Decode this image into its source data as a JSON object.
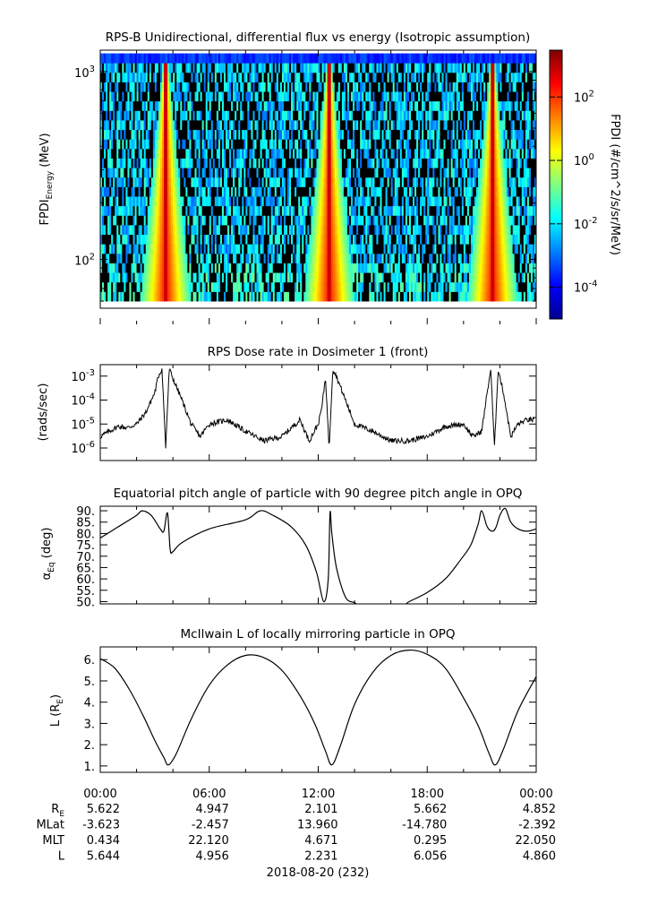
{
  "chart_data": [
    {
      "type": "heatmap",
      "title": "RPS-B  Unidirectional, differential flux vs energy (Isotropic assumption)",
      "ylabel_main": "FPDI",
      "ylabel_sub": "Energy",
      "ylabel_unit": " (MeV)",
      "yscale": "log",
      "ylim": [
        55,
        1300
      ],
      "y_ticks": [
        {
          "base": "10",
          "exp": "2",
          "value": 100
        },
        {
          "base": "10",
          "exp": "3",
          "value": 1000
        }
      ],
      "colorbar_label": "FPDI (#/cm^2/s/sr/MeV)",
      "colorbar_scale": "log",
      "colorbar_range": [
        1e-05,
        3000
      ],
      "colorbar_ticks": [
        {
          "base": "10",
          "exp": "2"
        },
        {
          "base": "10",
          "exp": "0"
        },
        {
          "base": "10",
          "exp": "-2"
        },
        {
          "base": "10",
          "exp": "-4"
        }
      ],
      "colormap": [
        "#00008f",
        "#0000ff",
        "#0080ff",
        "#00ffff",
        "#80ff80",
        "#ffff00",
        "#ff8000",
        "#ff0000",
        "#800000"
      ],
      "no_data_color": "#000000",
      "belt_passes_hours": [
        3.6,
        12.6,
        21.6
      ]
    },
    {
      "type": "line",
      "title": "RPS  Dose rate in Dosimeter 1 (front)",
      "ylabel": "(rads/sec)",
      "yscale": "log",
      "ylim": [
        3e-07,
        0.003
      ],
      "y_ticks": [
        {
          "base": "10",
          "exp": "-3"
        },
        {
          "base": "10",
          "exp": "-4"
        },
        {
          "base": "10",
          "exp": "-5"
        },
        {
          "base": "10",
          "exp": "-6"
        }
      ],
      "x_hours": [
        0,
        0.5,
        1.0,
        1.5,
        2.0,
        2.5,
        3.0,
        3.2,
        3.4,
        3.6,
        3.8,
        4.0,
        4.5,
        5.0,
        5.5,
        6.0,
        7.0,
        8.0,
        9.0,
        10.0,
        11.0,
        11.5,
        12.0,
        12.2,
        12.4,
        12.6,
        12.8,
        13.0,
        13.5,
        14.0,
        15.0,
        16.0,
        17.0,
        18.0,
        19.0,
        20.0,
        20.5,
        21.0,
        21.3,
        21.5,
        21.7,
        21.9,
        22.2,
        22.6,
        23.0,
        23.5,
        24.0
      ],
      "values": [
        3e-06,
        5e-06,
        8e-06,
        7e-06,
        1e-05,
        3e-05,
        0.0002,
        0.001,
        0.002,
        1e-06,
        0.002,
        0.0008,
        0.0001,
        1e-05,
        3e-06,
        1e-05,
        1.5e-05,
        5e-06,
        2e-06,
        3e-06,
        1.5e-05,
        2e-06,
        1e-05,
        5e-05,
        0.001,
        1e-06,
        0.002,
        0.001,
        0.0001,
        1e-05,
        5e-06,
        2e-06,
        2e-06,
        3e-06,
        8e-06,
        1e-05,
        3e-06,
        5e-06,
        0.0002,
        0.002,
        1e-06,
        0.002,
        0.0002,
        3e-06,
        1e-05,
        1.5e-05,
        1.5e-05
      ]
    },
    {
      "type": "line",
      "title": "Equatorial pitch angle of particle with 90 degree pitch angle in OPQ",
      "ylabel_main": "α",
      "ylabel_sub": "Eq",
      "ylabel_unit": " (deg)",
      "ylim": [
        49,
        92
      ],
      "y_ticks": [
        50,
        55,
        60,
        65,
        70,
        75,
        80,
        85,
        90
      ],
      "y_tick_labels": [
        "50.",
        "55.",
        "60.",
        "65.",
        "70.",
        "75.",
        "80.",
        "85.",
        "90."
      ],
      "x_hours": [
        0,
        1.0,
        2.0,
        2.3,
        2.8,
        3.3,
        3.5,
        3.7,
        3.85,
        4.0,
        4.5,
        6.0,
        8.0,
        8.8,
        9.5,
        10.5,
        11.3,
        11.9,
        12.3,
        12.55,
        12.65,
        12.75,
        13.0,
        13.5,
        14.0,
        14.5,
        16.5,
        17.0,
        18.0,
        19.0,
        19.8,
        20.4,
        20.8,
        21.0,
        21.3,
        21.6,
        21.8,
        22.0,
        22.3,
        22.6,
        23.0,
        23.5,
        24.0
      ],
      "values": [
        78,
        83,
        88,
        90,
        88,
        82,
        81,
        89,
        73,
        72,
        76,
        82,
        86,
        90,
        88,
        83,
        75,
        63,
        50,
        60,
        89,
        80,
        65,
        52,
        49.5,
        48,
        48,
        50,
        54,
        60,
        68,
        75,
        84,
        90,
        83,
        81,
        83,
        88,
        91,
        85,
        82,
        81,
        82
      ]
    },
    {
      "type": "line",
      "title": "McIlwain L of locally mirroring particle in OPQ",
      "ylabel_main": "L (R",
      "ylabel_sub": "E",
      "ylabel_unit": ")",
      "ylim": [
        0.7,
        6.6
      ],
      "y_ticks": [
        1,
        2,
        3,
        4,
        5,
        6
      ],
      "y_tick_labels": [
        "1.",
        "2.",
        "3.",
        "4.",
        "5.",
        "6."
      ],
      "x_hours": [
        0,
        0.8,
        1.6,
        2.4,
        3.0,
        3.5,
        3.75,
        4.2,
        5.0,
        6.0,
        7.0,
        8.0,
        9.0,
        10.0,
        11.0,
        11.8,
        12.4,
        12.75,
        13.2,
        14.0,
        15.0,
        16.0,
        17.0,
        18.0,
        19.0,
        20.0,
        20.8,
        21.4,
        21.75,
        22.2,
        23.0,
        24.0
      ],
      "values": [
        6.05,
        5.6,
        4.6,
        3.3,
        2.2,
        1.4,
        1.05,
        1.6,
        3.2,
        4.8,
        5.75,
        6.2,
        6.1,
        5.5,
        4.3,
        3.0,
        1.7,
        1.05,
        1.9,
        3.9,
        5.4,
        6.2,
        6.45,
        6.25,
        5.6,
        4.2,
        2.9,
        1.6,
        1.05,
        1.8,
        3.6,
        5.2
      ]
    }
  ],
  "x_axis": {
    "hours": [
      0,
      6,
      12,
      18,
      24
    ],
    "tick_labels": [
      "00:00",
      "06:00",
      "12:00",
      "18:00",
      "00:00"
    ],
    "rows": [
      {
        "name_main": "R",
        "name_sub": "E",
        "values": [
          "5.622",
          "4.947",
          "2.101",
          "5.662",
          "4.852"
        ]
      },
      {
        "name_main": "MLat",
        "name_sub": "",
        "values": [
          "-3.623",
          "-2.457",
          "13.960",
          "-14.780",
          "-2.392"
        ]
      },
      {
        "name_main": "MLT",
        "name_sub": "",
        "values": [
          "0.434",
          "22.120",
          "4.671",
          "0.295",
          "22.050"
        ]
      },
      {
        "name_main": "L",
        "name_sub": "",
        "values": [
          "5.644",
          "4.956",
          "2.231",
          "6.056",
          "4.860"
        ]
      }
    ],
    "date_label": "2018-08-20 (232)"
  }
}
